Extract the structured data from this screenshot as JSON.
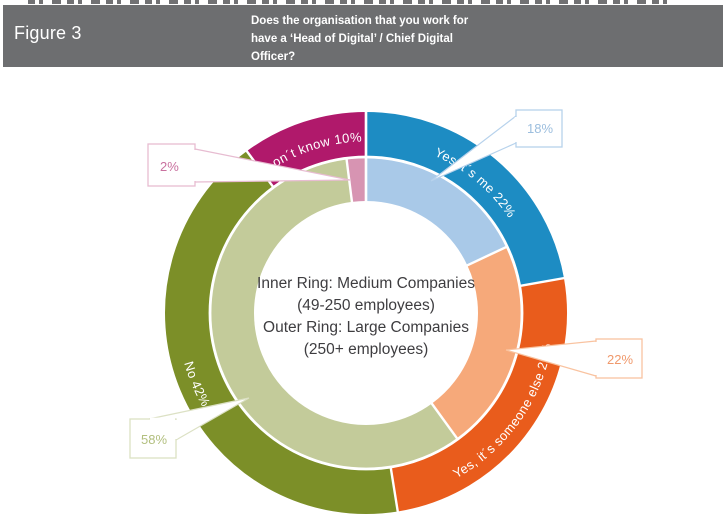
{
  "header": {
    "figure_label": "Figure 3",
    "question_lines": [
      "Does the organisation that you work for",
      "have a ‘Head of Digital’ / Chief Digital",
      "Officer?"
    ]
  },
  "donut_center": {
    "lines": [
      "Inner Ring: Medium Companies",
      "(49-250 employees)",
      "Outer Ring: Large Companies",
      "(250+ employees)"
    ]
  },
  "chart_data": {
    "type": "pie",
    "subtype": "concentric-double-ring-donut",
    "title": "Does the organisation that you work for have a 'Head of Digital' / Chief Digital Officer?",
    "legend_note": "Inner Ring: Medium Companies (49-250 employees); Outer Ring: Large Companies (250+ employees)",
    "start_angle_deg": 0,
    "direction": "clockwise",
    "rings": [
      {
        "name": "Large Companies (250+ employees)",
        "position": "outer",
        "segments": [
          {
            "label": "Yes it's me",
            "value": 22,
            "display": "Yes it´s me 22%",
            "color": "#1d8cc3"
          },
          {
            "label": "Yes, it's someone else",
            "value": 25,
            "display": "Yes, it´s someone else 25%",
            "color": "#e95c1c"
          },
          {
            "label": "No",
            "value": 42,
            "display": "No 42%",
            "color": "#7c8f28"
          },
          {
            "label": "Don't know",
            "value": 10,
            "display": "Don´t know 10%",
            "color": "#b0196b"
          }
        ]
      },
      {
        "name": "Medium Companies (49-250 employees)",
        "position": "inner",
        "segments": [
          {
            "label": "Yes it's me",
            "value": 18,
            "callout": "18%",
            "color": "#a9c9e8",
            "callout_border": "#b7d2ec",
            "callout_text": "#9cbede"
          },
          {
            "label": "Yes, it's someone else",
            "value": 22,
            "callout": "22%",
            "color": "#f6a97a",
            "callout_border": "#f9c3a0",
            "callout_text": "#f0996c"
          },
          {
            "label": "No",
            "value": 58,
            "callout": "58%",
            "color": "#c3cb9a",
            "callout_border": "#dce1c4",
            "callout_text": "#b2bf7f"
          },
          {
            "label": "Don't know",
            "value": 2,
            "callout": "2%",
            "color": "#d794b2",
            "callout_border": "#e7bcd1",
            "callout_text": "#c9719f"
          }
        ]
      }
    ]
  }
}
